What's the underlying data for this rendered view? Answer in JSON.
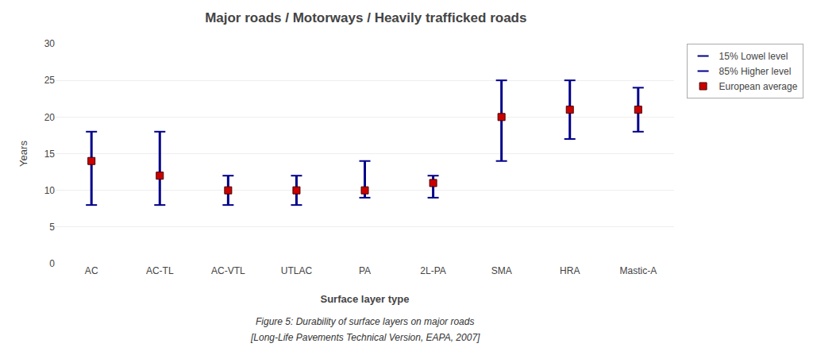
{
  "chart_data": {
    "type": "range",
    "title": "Major roads / Motorways / Heavily trafficked roads",
    "xlabel": "Surface layer type",
    "ylabel": "Years",
    "categories": [
      "AC",
      "AC-TL",
      "AC-VTL",
      "UTLAC",
      "PA",
      "2L-PA",
      "SMA",
      "HRA",
      "Mastic-A"
    ],
    "series": [
      {
        "name": "15% Lowel level",
        "values": [
          8,
          8,
          8,
          8,
          9,
          9,
          14,
          17,
          18
        ],
        "color": "#00008B"
      },
      {
        "name": "85% Higher level",
        "values": [
          18,
          18,
          12,
          12,
          14,
          12,
          25,
          25,
          24
        ],
        "color": "#00008B"
      },
      {
        "name": "European average",
        "values": [
          14,
          12,
          10,
          10,
          10,
          11,
          20,
          21,
          21
        ],
        "color": "#CC0000",
        "marker": "square"
      }
    ],
    "ylim": [
      0,
      30
    ],
    "yticks": [
      0,
      5,
      10,
      15,
      20,
      25,
      30
    ],
    "grid": true,
    "legend": "right",
    "annotations": [
      "Figure 5: Durability of surface layers on major roads",
      "[Long-Life Pavements Technical Version, EAPA, 2007]"
    ]
  }
}
